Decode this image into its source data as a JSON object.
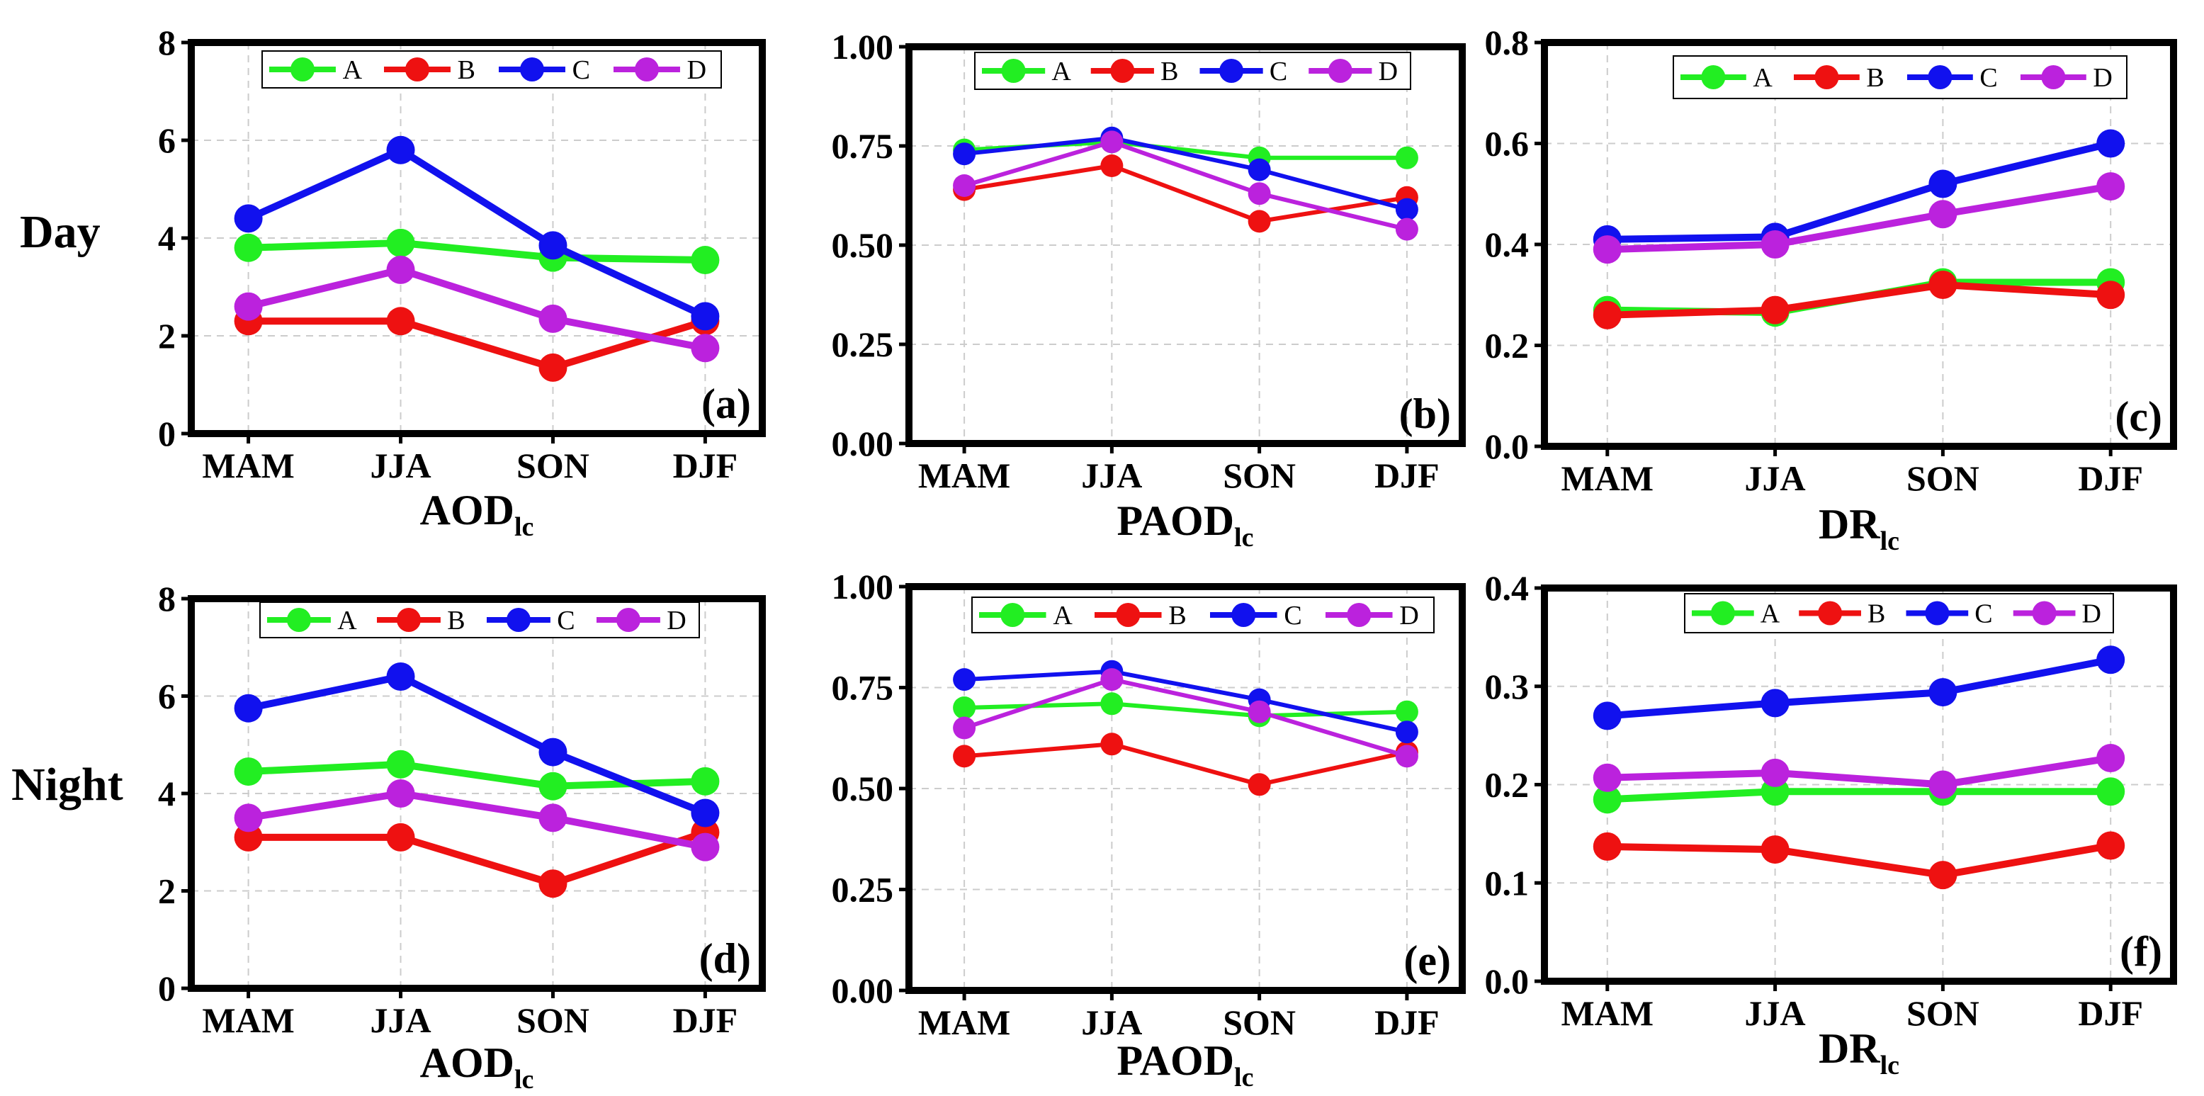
{
  "row_labels": {
    "day": "Day",
    "night": "Night"
  },
  "colors": {
    "A": "#22ee22",
    "B": "#ee1111",
    "C": "#1111ee",
    "D": "#bb22dd"
  },
  "chart_data": [
    {
      "type": "line",
      "panel_label": "(a)",
      "xlabel_main": "AOD",
      "xlabel_sub": "lc",
      "categories": [
        "MAM",
        "JJA",
        "SON",
        "DJF"
      ],
      "ylim": [
        0,
        8
      ],
      "yticks": [
        "0",
        "2",
        "4",
        "6",
        "8"
      ],
      "grid": true,
      "legend": {
        "position": "top",
        "entries": [
          "A",
          "B",
          "C",
          "D"
        ]
      },
      "series": [
        {
          "name": "A",
          "values": [
            3.8,
            3.9,
            3.6,
            3.55
          ]
        },
        {
          "name": "B",
          "values": [
            2.3,
            2.3,
            1.35,
            2.3
          ]
        },
        {
          "name": "C",
          "values": [
            4.4,
            5.8,
            3.85,
            2.4
          ]
        },
        {
          "name": "D",
          "values": [
            2.6,
            3.35,
            2.35,
            1.75
          ]
        }
      ]
    },
    {
      "type": "line",
      "panel_label": "(b)",
      "xlabel_main": "PAOD",
      "xlabel_sub": "lc",
      "categories": [
        "MAM",
        "JJA",
        "SON",
        "DJF"
      ],
      "ylim": [
        0,
        1
      ],
      "yticks": [
        "0.00",
        "0.25",
        "0.50",
        "0.75",
        "1.00"
      ],
      "grid": true,
      "legend": {
        "position": "top",
        "entries": [
          "A",
          "B",
          "C",
          "D"
        ]
      },
      "series": [
        {
          "name": "A",
          "values": [
            0.74,
            0.76,
            0.72,
            0.72
          ]
        },
        {
          "name": "B",
          "values": [
            0.64,
            0.7,
            0.56,
            0.62
          ]
        },
        {
          "name": "C",
          "values": [
            0.73,
            0.77,
            0.69,
            0.59
          ]
        },
        {
          "name": "D",
          "values": [
            0.65,
            0.76,
            0.63,
            0.54
          ]
        }
      ]
    },
    {
      "type": "line",
      "panel_label": "(c)",
      "xlabel_main": "DR",
      "xlabel_sub": "lc",
      "categories": [
        "MAM",
        "JJA",
        "SON",
        "DJF"
      ],
      "ylim": [
        0,
        0.8
      ],
      "yticks": [
        "0.0",
        "0.2",
        "0.4",
        "0.6",
        "0.8"
      ],
      "grid": true,
      "legend": {
        "position": "top",
        "entries": [
          "A",
          "B",
          "C",
          "D"
        ]
      },
      "series": [
        {
          "name": "A",
          "values": [
            0.27,
            0.265,
            0.325,
            0.325
          ]
        },
        {
          "name": "B",
          "values": [
            0.26,
            0.27,
            0.32,
            0.3
          ]
        },
        {
          "name": "C",
          "values": [
            0.41,
            0.415,
            0.52,
            0.6
          ]
        },
        {
          "name": "D",
          "values": [
            0.39,
            0.4,
            0.46,
            0.515
          ]
        }
      ]
    },
    {
      "type": "line",
      "panel_label": "(d)",
      "xlabel_main": "AOD",
      "xlabel_sub": "lc",
      "categories": [
        "MAM",
        "JJA",
        "SON",
        "DJF"
      ],
      "ylim": [
        0,
        8
      ],
      "yticks": [
        "0",
        "2",
        "4",
        "6",
        "8"
      ],
      "grid": true,
      "legend": {
        "position": "top",
        "entries": [
          "A",
          "B",
          "C",
          "D"
        ]
      },
      "series": [
        {
          "name": "A",
          "values": [
            4.45,
            4.6,
            4.15,
            4.25
          ]
        },
        {
          "name": "B",
          "values": [
            3.1,
            3.1,
            2.15,
            3.2
          ]
        },
        {
          "name": "C",
          "values": [
            5.75,
            6.4,
            4.85,
            3.6
          ]
        },
        {
          "name": "D",
          "values": [
            3.5,
            4.0,
            3.5,
            2.9
          ]
        }
      ]
    },
    {
      "type": "line",
      "panel_label": "(e)",
      "xlabel_main": "PAOD",
      "xlabel_sub": "lc",
      "categories": [
        "MAM",
        "JJA",
        "SON",
        "DJF"
      ],
      "ylim": [
        0,
        1
      ],
      "yticks": [
        "0.00",
        "0.25",
        "0.50",
        "0.75",
        "1.00"
      ],
      "grid": true,
      "legend": {
        "position": "top",
        "entries": [
          "A",
          "B",
          "C",
          "D"
        ]
      },
      "series": [
        {
          "name": "A",
          "values": [
            0.7,
            0.71,
            0.68,
            0.69
          ]
        },
        {
          "name": "B",
          "values": [
            0.58,
            0.61,
            0.51,
            0.59
          ]
        },
        {
          "name": "C",
          "values": [
            0.77,
            0.79,
            0.72,
            0.64
          ]
        },
        {
          "name": "D",
          "values": [
            0.65,
            0.77,
            0.69,
            0.58
          ]
        }
      ]
    },
    {
      "type": "line",
      "panel_label": "(f)",
      "xlabel_main": "DR",
      "xlabel_sub": "lc",
      "categories": [
        "MAM",
        "JJA",
        "SON",
        "DJF"
      ],
      "ylim": [
        0,
        0.4
      ],
      "yticks": [
        "0.0",
        "0.1",
        "0.2",
        "0.3",
        "0.4"
      ],
      "grid": true,
      "legend": {
        "position": "top",
        "entries": [
          "A",
          "B",
          "C",
          "D"
        ]
      },
      "series": [
        {
          "name": "A",
          "values": [
            0.185,
            0.193,
            0.193,
            0.193
          ]
        },
        {
          "name": "B",
          "values": [
            0.137,
            0.134,
            0.108,
            0.138
          ]
        },
        {
          "name": "C",
          "values": [
            0.27,
            0.283,
            0.294,
            0.327
          ]
        },
        {
          "name": "D",
          "values": [
            0.207,
            0.212,
            0.2,
            0.227
          ]
        }
      ]
    }
  ]
}
